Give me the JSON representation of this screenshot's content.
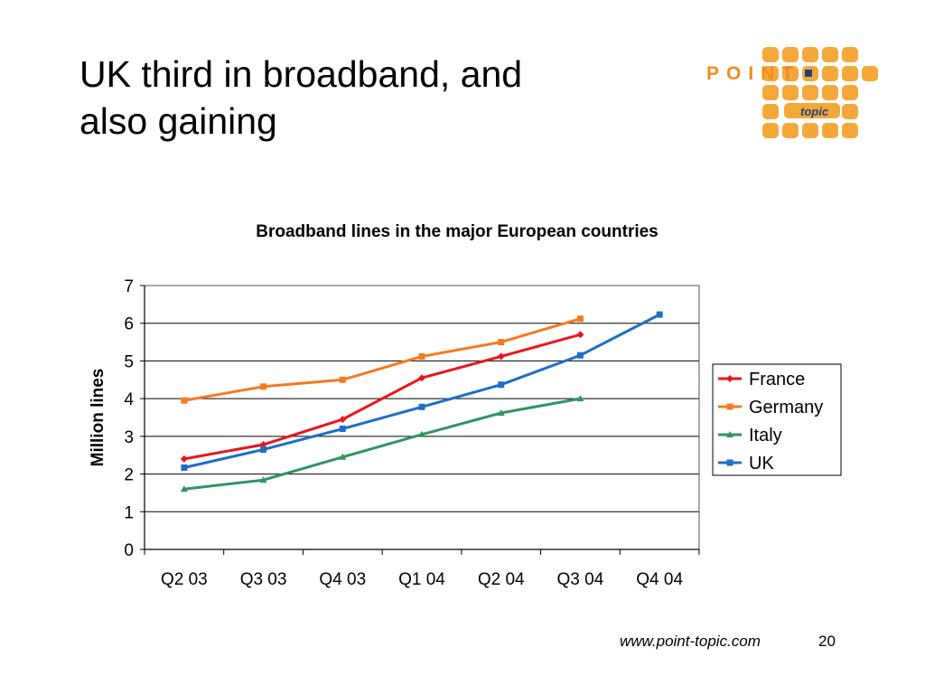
{
  "slide": {
    "title_line1": "UK third in broadband, and",
    "title_line2": "also gaining",
    "footer_url": "www.point-topic.com",
    "page_number": "20"
  },
  "logo": {
    "word": "POINT",
    "sub": "topic",
    "color": "#f5a83a",
    "text_color": "#f28c1e",
    "sub_color": "#1f3f7a",
    "dot_color": "#1f3f7a"
  },
  "chart_data": {
    "type": "line",
    "title": "Broadband lines in the major European countries",
    "xlabel": "",
    "ylabel": "Million lines",
    "categories": [
      "Q2 03",
      "Q3 03",
      "Q4 03",
      "Q1 04",
      "Q2 04",
      "Q3 04",
      "Q4 04"
    ],
    "ylim": [
      0,
      7
    ],
    "yticks": [
      "0",
      "1",
      "2",
      "3",
      "4",
      "5",
      "6",
      "7"
    ],
    "grid": true,
    "legend_position": "right",
    "series": [
      {
        "name": "France",
        "color": "#e8161b",
        "marker": "diamond",
        "values": [
          2.4,
          2.78,
          3.45,
          4.55,
          5.12,
          5.7,
          null
        ]
      },
      {
        "name": "Germany",
        "color": "#f47a20",
        "marker": "square",
        "values": [
          3.95,
          4.32,
          4.5,
          5.12,
          5.5,
          6.12,
          null
        ]
      },
      {
        "name": "Italy",
        "color": "#2f9463",
        "marker": "triangle",
        "values": [
          1.6,
          1.84,
          2.45,
          3.05,
          3.62,
          4.0,
          null
        ]
      },
      {
        "name": "UK",
        "color": "#1c6fc6",
        "marker": "square",
        "values": [
          2.17,
          2.65,
          3.2,
          3.78,
          4.37,
          5.15,
          6.23
        ]
      }
    ]
  }
}
